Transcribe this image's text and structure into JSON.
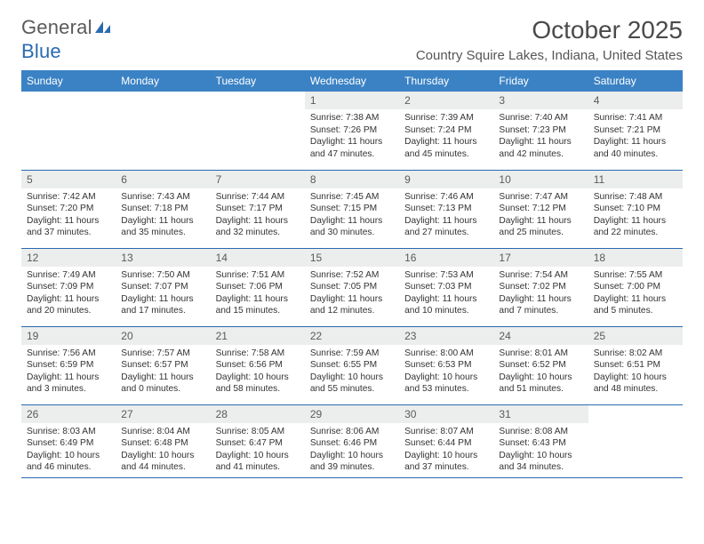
{
  "logo": {
    "word1": "General",
    "word2": "Blue"
  },
  "title": "October 2025",
  "location": "Country Squire Lakes, Indiana, United States",
  "colors": {
    "header_bg": "#3b82c4",
    "header_text": "#ffffff",
    "daynum_bg": "#eceded",
    "row_border": "#2a6ab0",
    "logo_gray": "#5a5a5a",
    "logo_blue": "#2a6ab0",
    "body_text": "#333333"
  },
  "typography": {
    "body_fontsize": 10.2,
    "daynum_fontsize": 12,
    "header_fontsize": 12,
    "title_fontsize": 28,
    "location_fontsize": 15
  },
  "day_headers": [
    "Sunday",
    "Monday",
    "Tuesday",
    "Wednesday",
    "Thursday",
    "Friday",
    "Saturday"
  ],
  "weeks": [
    [
      null,
      null,
      null,
      {
        "n": "1",
        "sunrise": "7:38 AM",
        "sunset": "7:26 PM",
        "dl": "11 hours and 47 minutes."
      },
      {
        "n": "2",
        "sunrise": "7:39 AM",
        "sunset": "7:24 PM",
        "dl": "11 hours and 45 minutes."
      },
      {
        "n": "3",
        "sunrise": "7:40 AM",
        "sunset": "7:23 PM",
        "dl": "11 hours and 42 minutes."
      },
      {
        "n": "4",
        "sunrise": "7:41 AM",
        "sunset": "7:21 PM",
        "dl": "11 hours and 40 minutes."
      }
    ],
    [
      {
        "n": "5",
        "sunrise": "7:42 AM",
        "sunset": "7:20 PM",
        "dl": "11 hours and 37 minutes."
      },
      {
        "n": "6",
        "sunrise": "7:43 AM",
        "sunset": "7:18 PM",
        "dl": "11 hours and 35 minutes."
      },
      {
        "n": "7",
        "sunrise": "7:44 AM",
        "sunset": "7:17 PM",
        "dl": "11 hours and 32 minutes."
      },
      {
        "n": "8",
        "sunrise": "7:45 AM",
        "sunset": "7:15 PM",
        "dl": "11 hours and 30 minutes."
      },
      {
        "n": "9",
        "sunrise": "7:46 AM",
        "sunset": "7:13 PM",
        "dl": "11 hours and 27 minutes."
      },
      {
        "n": "10",
        "sunrise": "7:47 AM",
        "sunset": "7:12 PM",
        "dl": "11 hours and 25 minutes."
      },
      {
        "n": "11",
        "sunrise": "7:48 AM",
        "sunset": "7:10 PM",
        "dl": "11 hours and 22 minutes."
      }
    ],
    [
      {
        "n": "12",
        "sunrise": "7:49 AM",
        "sunset": "7:09 PM",
        "dl": "11 hours and 20 minutes."
      },
      {
        "n": "13",
        "sunrise": "7:50 AM",
        "sunset": "7:07 PM",
        "dl": "11 hours and 17 minutes."
      },
      {
        "n": "14",
        "sunrise": "7:51 AM",
        "sunset": "7:06 PM",
        "dl": "11 hours and 15 minutes."
      },
      {
        "n": "15",
        "sunrise": "7:52 AM",
        "sunset": "7:05 PM",
        "dl": "11 hours and 12 minutes."
      },
      {
        "n": "16",
        "sunrise": "7:53 AM",
        "sunset": "7:03 PM",
        "dl": "11 hours and 10 minutes."
      },
      {
        "n": "17",
        "sunrise": "7:54 AM",
        "sunset": "7:02 PM",
        "dl": "11 hours and 7 minutes."
      },
      {
        "n": "18",
        "sunrise": "7:55 AM",
        "sunset": "7:00 PM",
        "dl": "11 hours and 5 minutes."
      }
    ],
    [
      {
        "n": "19",
        "sunrise": "7:56 AM",
        "sunset": "6:59 PM",
        "dl": "11 hours and 3 minutes."
      },
      {
        "n": "20",
        "sunrise": "7:57 AM",
        "sunset": "6:57 PM",
        "dl": "11 hours and 0 minutes."
      },
      {
        "n": "21",
        "sunrise": "7:58 AM",
        "sunset": "6:56 PM",
        "dl": "10 hours and 58 minutes."
      },
      {
        "n": "22",
        "sunrise": "7:59 AM",
        "sunset": "6:55 PM",
        "dl": "10 hours and 55 minutes."
      },
      {
        "n": "23",
        "sunrise": "8:00 AM",
        "sunset": "6:53 PM",
        "dl": "10 hours and 53 minutes."
      },
      {
        "n": "24",
        "sunrise": "8:01 AM",
        "sunset": "6:52 PM",
        "dl": "10 hours and 51 minutes."
      },
      {
        "n": "25",
        "sunrise": "8:02 AM",
        "sunset": "6:51 PM",
        "dl": "10 hours and 48 minutes."
      }
    ],
    [
      {
        "n": "26",
        "sunrise": "8:03 AM",
        "sunset": "6:49 PM",
        "dl": "10 hours and 46 minutes."
      },
      {
        "n": "27",
        "sunrise": "8:04 AM",
        "sunset": "6:48 PM",
        "dl": "10 hours and 44 minutes."
      },
      {
        "n": "28",
        "sunrise": "8:05 AM",
        "sunset": "6:47 PM",
        "dl": "10 hours and 41 minutes."
      },
      {
        "n": "29",
        "sunrise": "8:06 AM",
        "sunset": "6:46 PM",
        "dl": "10 hours and 39 minutes."
      },
      {
        "n": "30",
        "sunrise": "8:07 AM",
        "sunset": "6:44 PM",
        "dl": "10 hours and 37 minutes."
      },
      {
        "n": "31",
        "sunrise": "8:08 AM",
        "sunset": "6:43 PM",
        "dl": "10 hours and 34 minutes."
      },
      null
    ]
  ],
  "labels": {
    "sunrise": "Sunrise: ",
    "sunset": "Sunset: ",
    "daylight": "Daylight: "
  }
}
